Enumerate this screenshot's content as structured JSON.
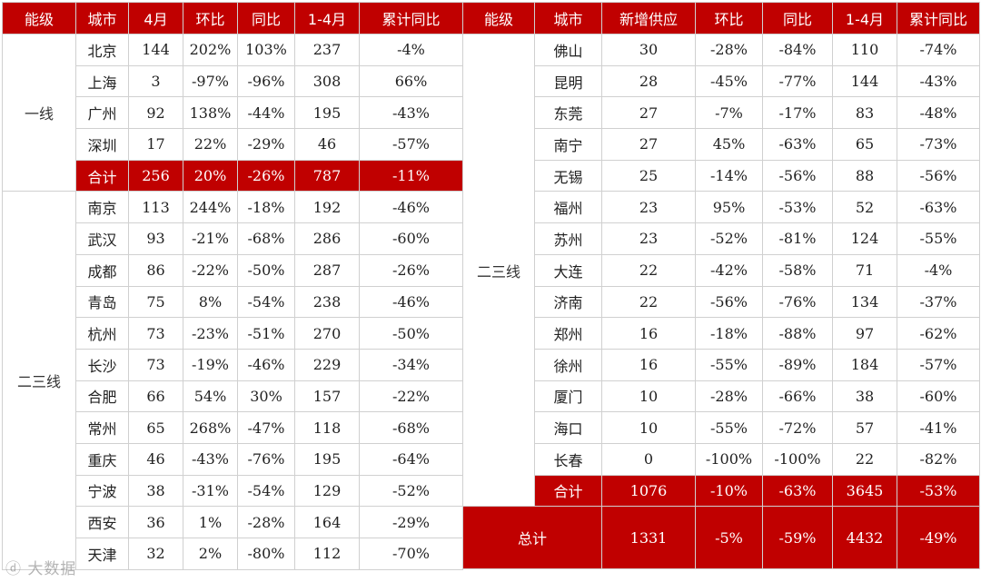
{
  "left": {
    "headers": [
      "能级",
      "城市",
      "4月",
      "环比",
      "同比",
      "1-4月",
      "累计同比"
    ],
    "tier1": {
      "label": "一线",
      "rows": [
        [
          "北京",
          "144",
          "202%",
          "103%",
          "237",
          "-4%"
        ],
        [
          "上海",
          "3",
          "-97%",
          "-96%",
          "308",
          "66%"
        ],
        [
          "广州",
          "92",
          "138%",
          "-44%",
          "195",
          "-43%"
        ],
        [
          "深圳",
          "17",
          "22%",
          "-29%",
          "46",
          "-57%"
        ]
      ],
      "subtotal": [
        "合计",
        "256",
        "20%",
        "-26%",
        "787",
        "-11%"
      ]
    },
    "tier23": {
      "label": "二三线",
      "rows": [
        [
          "南京",
          "113",
          "244%",
          "-18%",
          "192",
          "-46%"
        ],
        [
          "武汉",
          "93",
          "-21%",
          "-68%",
          "286",
          "-60%"
        ],
        [
          "成都",
          "86",
          "-22%",
          "-50%",
          "287",
          "-26%"
        ],
        [
          "青岛",
          "75",
          "8%",
          "-54%",
          "238",
          "-46%"
        ],
        [
          "杭州",
          "73",
          "-23%",
          "-51%",
          "270",
          "-50%"
        ],
        [
          "长沙",
          "73",
          "-19%",
          "-46%",
          "229",
          "-34%"
        ],
        [
          "合肥",
          "66",
          "54%",
          "30%",
          "157",
          "-22%"
        ],
        [
          "常州",
          "65",
          "268%",
          "-47%",
          "118",
          "-68%"
        ],
        [
          "重庆",
          "46",
          "-43%",
          "-76%",
          "195",
          "-64%"
        ],
        [
          "宁波",
          "38",
          "-31%",
          "-54%",
          "129",
          "-52%"
        ],
        [
          "西安",
          "36",
          "1%",
          "-28%",
          "164",
          "-29%"
        ],
        [
          "天津",
          "32",
          "2%",
          "-80%",
          "112",
          "-70%"
        ]
      ]
    }
  },
  "right": {
    "headers": [
      "能级",
      "城市",
      "新增供应",
      "环比",
      "同比",
      "1-4月",
      "累计同比"
    ],
    "tier_label": "二三线",
    "rows": [
      [
        "佛山",
        "30",
        "-28%",
        "-84%",
        "110",
        "-74%"
      ],
      [
        "昆明",
        "28",
        "-45%",
        "-77%",
        "144",
        "-43%"
      ],
      [
        "东莞",
        "27",
        "-7%",
        "-17%",
        "83",
        "-48%"
      ],
      [
        "南宁",
        "27",
        "45%",
        "-63%",
        "65",
        "-73%"
      ],
      [
        "无锡",
        "25",
        "-14%",
        "-56%",
        "88",
        "-56%"
      ],
      [
        "福州",
        "23",
        "95%",
        "-53%",
        "52",
        "-63%"
      ],
      [
        "苏州",
        "23",
        "-52%",
        "-81%",
        "124",
        "-55%"
      ],
      [
        "大连",
        "22",
        "-42%",
        "-58%",
        "71",
        "-4%"
      ],
      [
        "济南",
        "22",
        "-56%",
        "-76%",
        "134",
        "-37%"
      ],
      [
        "郑州",
        "16",
        "-18%",
        "-88%",
        "97",
        "-62%"
      ],
      [
        "徐州",
        "16",
        "-55%",
        "-89%",
        "184",
        "-57%"
      ],
      [
        "厦门",
        "10",
        "-28%",
        "-66%",
        "38",
        "-60%"
      ],
      [
        "海口",
        "10",
        "-55%",
        "-72%",
        "57",
        "-41%"
      ],
      [
        "长春",
        "0",
        "-100%",
        "-100%",
        "22",
        "-82%"
      ]
    ],
    "subtotal": [
      "合计",
      "1076",
      "-10%",
      "-63%",
      "3645",
      "-53%"
    ],
    "total": [
      "总计",
      "1331",
      "-5%",
      "-59%",
      "4432",
      "-49%"
    ]
  },
  "watermark": "大数据"
}
